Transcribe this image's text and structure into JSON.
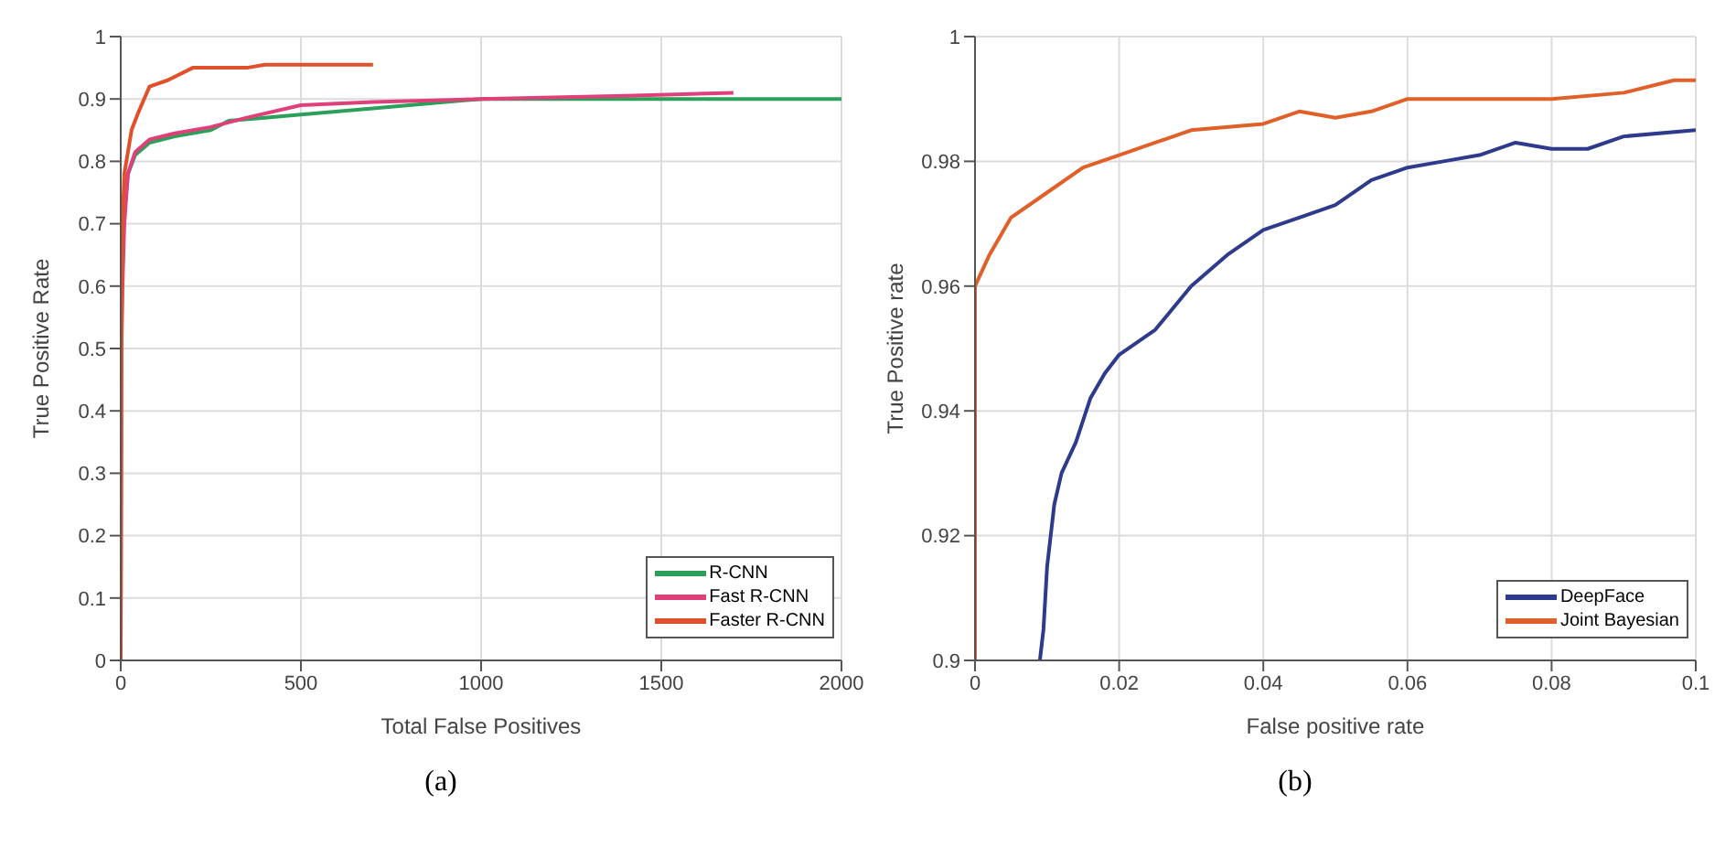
{
  "chart_data": [
    {
      "type": "line",
      "xlabel": "Total False Positives",
      "ylabel": "True Positive Rate",
      "annotations": [
        "(a)"
      ],
      "xlim": [
        0,
        2000
      ],
      "xticks": [
        0,
        500,
        1000,
        1500,
        2000
      ],
      "ylim": [
        0,
        1
      ],
      "yticks": [
        0,
        0.1,
        0.2,
        0.3,
        0.4,
        0.5,
        0.6,
        0.7,
        0.8,
        0.9,
        1
      ],
      "grid": true,
      "legend": "bottom right",
      "marker": "none",
      "line_style": "solid",
      "series": [
        {
          "name": "R-CNN",
          "color": "#2ca05a",
          "x": [
            10,
            20,
            40,
            80,
            150,
            250,
            300,
            400,
            500,
            700,
            1000,
            1500,
            2000
          ],
          "values": [
            0.72,
            0.78,
            0.81,
            0.83,
            0.84,
            0.85,
            0.865,
            0.87,
            0.875,
            0.885,
            0.9,
            0.9,
            0.9
          ]
        },
        {
          "name": "Fast R-CNN",
          "color": "#e0407a",
          "x": [
            0,
            2,
            5,
            10,
            20,
            40,
            80,
            150,
            250,
            350,
            500,
            700,
            1000,
            1400,
            1700
          ],
          "values": [
            0,
            0.5,
            0.6,
            0.7,
            0.78,
            0.815,
            0.835,
            0.845,
            0.855,
            0.87,
            0.89,
            0.895,
            0.9,
            0.905,
            0.91
          ]
        },
        {
          "name": "Faster R-CNN",
          "color": "#e0502a",
          "x": [
            0,
            2,
            5,
            10,
            30,
            50,
            80,
            130,
            200,
            300,
            350,
            400,
            500,
            700
          ],
          "values": [
            0,
            0.5,
            0.7,
            0.78,
            0.85,
            0.88,
            0.92,
            0.93,
            0.95,
            0.95,
            0.95,
            0.955,
            0.955,
            0.955
          ]
        }
      ]
    },
    {
      "type": "line",
      "xlabel": "False positive rate",
      "ylabel": "True Positive rate",
      "annotations": [
        "(b)"
      ],
      "xlim": [
        0,
        0.1
      ],
      "xticks": [
        0,
        0.02,
        0.04,
        0.06,
        0.08,
        0.1
      ],
      "ylim": [
        0.9,
        1
      ],
      "yticks": [
        0.9,
        0.92,
        0.94,
        0.96,
        0.98,
        1
      ],
      "grid": true,
      "legend": "bottom right",
      "marker": "none",
      "line_style": "solid",
      "series": [
        {
          "name": "DeepFace",
          "color": "#2e3a8c",
          "x": [
            0.009,
            0.0095,
            0.01,
            0.011,
            0.012,
            0.014,
            0.016,
            0.018,
            0.02,
            0.025,
            0.03,
            0.035,
            0.04,
            0.045,
            0.05,
            0.055,
            0.06,
            0.065,
            0.07,
            0.075,
            0.08,
            0.085,
            0.09,
            0.1
          ],
          "values": [
            0.9,
            0.905,
            0.915,
            0.925,
            0.93,
            0.935,
            0.942,
            0.946,
            0.949,
            0.953,
            0.96,
            0.965,
            0.969,
            0.971,
            0.973,
            0.977,
            0.979,
            0.98,
            0.981,
            0.983,
            0.982,
            0.982,
            0.984,
            0.985
          ]
        },
        {
          "name": "Joint Bayesian",
          "color": "#e0602a",
          "x": [
            0,
            0,
            0.002,
            0.005,
            0.01,
            0.015,
            0.02,
            0.025,
            0.03,
            0.04,
            0.045,
            0.05,
            0.055,
            0.06,
            0.065,
            0.07,
            0.08,
            0.09,
            0.097,
            0.1
          ],
          "values": [
            0.9,
            0.96,
            0.965,
            0.971,
            0.975,
            0.979,
            0.981,
            0.983,
            0.985,
            0.986,
            0.988,
            0.987,
            0.988,
            0.99,
            0.99,
            0.99,
            0.99,
            0.991,
            0.993,
            0.993
          ]
        }
      ]
    }
  ]
}
